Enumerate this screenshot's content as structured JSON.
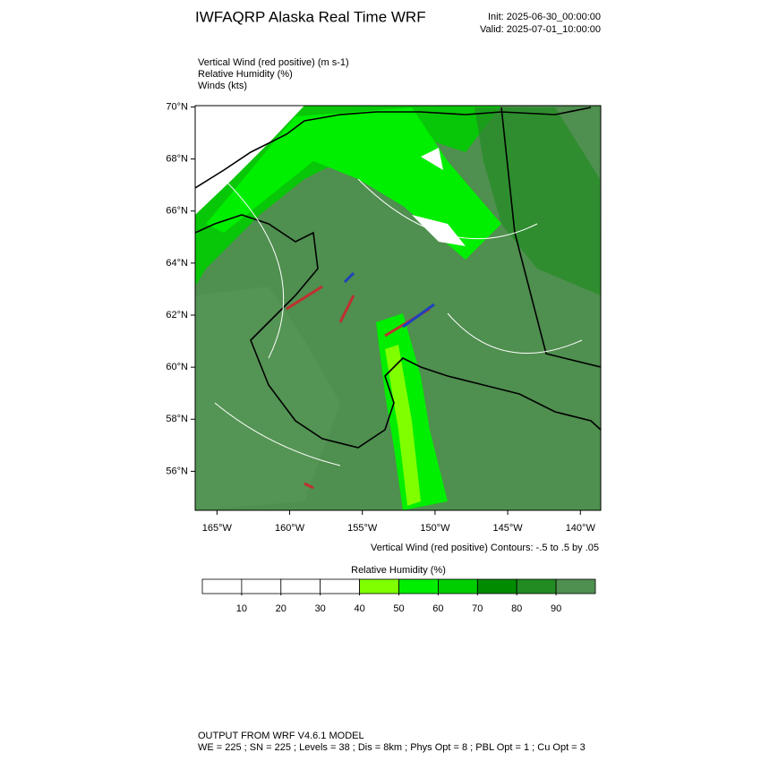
{
  "header": {
    "title": "IWFAQRP Alaska Real Time WRF",
    "init": "Init: 2025-06-30_00:00:00",
    "valid": "Valid: 2025-07-01_10:00:00"
  },
  "fields": [
    "Vertical Wind (red positive)   (m s-1)",
    "Relative Humidity   (%)",
    "Winds   (kts)"
  ],
  "map": {
    "ylim": [
      54.5,
      70.05
    ],
    "yticks": [
      {
        "value": 56,
        "label": "56°N"
      },
      {
        "value": 58,
        "label": "58°N"
      },
      {
        "value": 60,
        "label": "60°N"
      },
      {
        "value": 62,
        "label": "62°N"
      },
      {
        "value": 64,
        "label": "64°N"
      },
      {
        "value": 66,
        "label": "66°N"
      },
      {
        "value": 68,
        "label": "68°N"
      },
      {
        "value": 70,
        "label": "70°N"
      }
    ],
    "xlim": [
      -166.5,
      -138.6
    ],
    "xticks": [
      {
        "value": -165,
        "label": "165°W"
      },
      {
        "value": -160,
        "label": "160°W"
      },
      {
        "value": -155,
        "label": "155°W"
      },
      {
        "value": -150,
        "label": "150°W"
      },
      {
        "value": -145,
        "label": "145°W"
      },
      {
        "value": -140,
        "label": "140°W"
      }
    ]
  },
  "contour_note": "Vertical Wind (red positive) Contours: -.5 to .5 by .05",
  "colorbar": {
    "title": "Relative Humidity  (%)",
    "lim": [
      0,
      100
    ],
    "ticks": [
      10,
      20,
      30,
      40,
      50,
      60,
      70,
      80,
      90
    ],
    "colors": [
      "#ffffff",
      "#ffffff",
      "#ffffff",
      "#ffffff",
      "#7fff00",
      "#00ee00",
      "#00cd00",
      "#008b00",
      "#228b22",
      "#4f8f4f"
    ]
  },
  "footer": [
    "OUTPUT FROM WRF V4.6.1 MODEL",
    "WE = 225 ; SN = 225 ; Levels = 38 ; Dis = 8km ; Phys Opt = 8 ; PBL Opt = 1 ; Cu Opt = 3"
  ]
}
